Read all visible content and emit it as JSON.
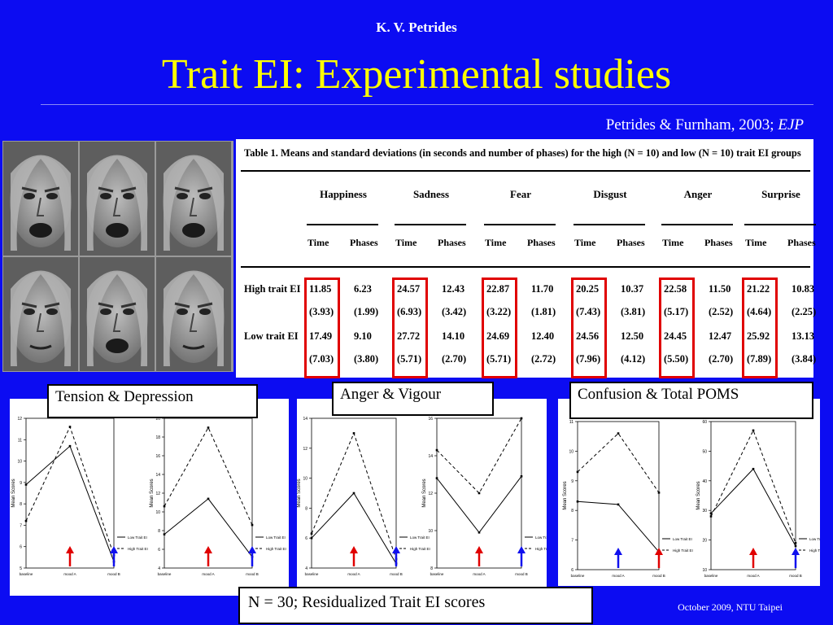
{
  "header": {
    "author": "K. V. Petrides",
    "title": "Trait EI: Experimental studies",
    "citation_text": "Petrides & Furnham, 2003; ",
    "citation_journal": "EJP"
  },
  "table": {
    "caption": "Table 1.   Means and standard deviations (in seconds and number of phases) for the high (N = 10) and low (N = 10) trait EI groups",
    "emotions": [
      "Happiness",
      "Sadness",
      "Fear",
      "Disgust",
      "Anger",
      "Surprise"
    ],
    "subheaders": [
      "Time",
      "Phases"
    ],
    "rows": [
      {
        "label": "High trait EI",
        "values": [
          "11.85",
          "6.23",
          "24.57",
          "12.43",
          "22.87",
          "11.70",
          "20.25",
          "10.37",
          "22.58",
          "11.50",
          "21.22",
          "10.83"
        ]
      },
      {
        "label": "",
        "values": [
          "(3.93)",
          "(1.99)",
          "(6.93)",
          "(3.42)",
          "(3.22)",
          "(1.81)",
          "(7.43)",
          "(3.81)",
          "(5.17)",
          "(2.52)",
          "(4.64)",
          "(2.25)"
        ]
      },
      {
        "label": "Low trait EI",
        "values": [
          "17.49",
          "9.10",
          "27.72",
          "14.10",
          "24.69",
          "12.40",
          "24.56",
          "12.50",
          "24.45",
          "12.47",
          "25.92",
          "13.13"
        ]
      },
      {
        "label": "",
        "values": [
          "(7.03)",
          "(3.80)",
          "(5.71)",
          "(2.70)",
          "(5.71)",
          "(2.72)",
          "(7.96)",
          "(4.12)",
          "(5.50)",
          "(2.70)",
          "(7.89)",
          "(3.84)"
        ]
      }
    ]
  },
  "labels": {
    "tension": "Tension & Depression",
    "anger": "Anger & Vigour",
    "confusion": "Confusion & Total POMS",
    "note": "N = 30; Residualized Trait EI scores"
  },
  "footer": "October 2009,  NTU Taipei",
  "colors": {
    "background": "#0c0cf2",
    "title": "#ffff00",
    "highlight": "#e00000",
    "arrow_red": "#e00000",
    "arrow_blue": "#1010ee"
  },
  "chart_data": [
    {
      "type": "line",
      "panel": "Tension",
      "measure": "Tension",
      "ylabel": "Mean Scores",
      "categories": [
        "baseline",
        "mood A",
        "mood B"
      ],
      "ylim": [
        5,
        12
      ],
      "yticks": [
        5,
        6,
        7,
        8,
        9,
        10,
        11,
        12
      ],
      "series": [
        {
          "name": "High Trait EI",
          "style": "dashed",
          "values": [
            7.2,
            11.6,
            5.6
          ]
        },
        {
          "name": "Low Trait EI",
          "style": "solid",
          "values": [
            8.9,
            10.7,
            5.3
          ]
        }
      ],
      "arrows": [
        {
          "at": "mood A",
          "color": "red"
        },
        {
          "at": "mood B",
          "color": "blue"
        }
      ]
    },
    {
      "type": "line",
      "panel": "Depression",
      "measure": "Depression",
      "ylabel": "Mean Scores",
      "categories": [
        "baseline",
        "mood A",
        "mood B"
      ],
      "ylim": [
        4,
        20
      ],
      "yticks": [
        4,
        6,
        8,
        10,
        12,
        14,
        16,
        18,
        20
      ],
      "series": [
        {
          "name": "High Trait EI",
          "style": "dashed",
          "values": [
            10.6,
            19.0,
            8.6
          ]
        },
        {
          "name": "Low Trait EI",
          "style": "solid",
          "values": [
            7.6,
            11.4,
            5.2
          ]
        }
      ],
      "arrows": [
        {
          "at": "mood A",
          "color": "red"
        },
        {
          "at": "mood B",
          "color": "blue"
        }
      ]
    },
    {
      "type": "line",
      "panel": "Anger",
      "measure": "Anger",
      "ylabel": "Mean Scores",
      "categories": [
        "baseline",
        "mood A",
        "mood B"
      ],
      "ylim": [
        4,
        14
      ],
      "yticks": [
        4,
        6,
        8,
        10,
        12,
        14
      ],
      "series": [
        {
          "name": "High Trait EI",
          "style": "dashed",
          "values": [
            6.3,
            13.0,
            4.6
          ]
        },
        {
          "name": "Low Trait EI",
          "style": "solid",
          "values": [
            6.0,
            9.0,
            4.3
          ]
        }
      ],
      "arrows": [
        {
          "at": "mood A",
          "color": "red"
        },
        {
          "at": "mood B",
          "color": "blue"
        }
      ]
    },
    {
      "type": "line",
      "panel": "Vigour",
      "measure": "Vigour",
      "ylabel": "Mean Scores",
      "categories": [
        "baseline",
        "mood A",
        "mood B"
      ],
      "ylim": [
        8,
        16
      ],
      "yticks": [
        8,
        10,
        12,
        14,
        16
      ],
      "series": [
        {
          "name": "High Trait EI",
          "style": "dashed",
          "values": [
            14.3,
            12.0,
            16.0
          ]
        },
        {
          "name": "Low Trait EI",
          "style": "solid",
          "values": [
            12.8,
            9.9,
            12.9
          ]
        }
      ],
      "arrows": [
        {
          "at": "mood A",
          "color": "red"
        },
        {
          "at": "mood B",
          "color": "blue"
        }
      ]
    },
    {
      "type": "line",
      "panel": "Confusion",
      "measure": "Confusion",
      "ylabel": "Mean Scores",
      "categories": [
        "baseline",
        "mood A",
        "mood B"
      ],
      "ylim": [
        6,
        11
      ],
      "yticks": [
        6,
        7,
        8,
        9,
        10,
        11
      ],
      "series": [
        {
          "name": "High Trait EI",
          "style": "dashed",
          "values": [
            9.3,
            10.6,
            8.6
          ]
        },
        {
          "name": "Low Trait EI",
          "style": "solid",
          "values": [
            8.3,
            8.2,
            6.6
          ]
        }
      ],
      "arrows": [
        {
          "at": "mood A",
          "color": "blue"
        },
        {
          "at": "mood B",
          "color": "red"
        }
      ]
    },
    {
      "type": "line",
      "panel": "Total POMS",
      "measure": "Total POMS",
      "ylabel": "Mean Scores",
      "categories": [
        "baseline",
        "mood A",
        "mood B"
      ],
      "ylim": [
        10,
        60
      ],
      "yticks": [
        10,
        20,
        30,
        40,
        50,
        60
      ],
      "series": [
        {
          "name": "High Trait EI",
          "style": "dashed",
          "values": [
            28,
            57,
            19
          ]
        },
        {
          "name": "Low Trait EI",
          "style": "solid",
          "values": [
            29,
            44,
            18
          ]
        }
      ],
      "arrows": [
        {
          "at": "mood A",
          "color": "red"
        },
        {
          "at": "mood B",
          "color": "blue"
        }
      ]
    }
  ]
}
